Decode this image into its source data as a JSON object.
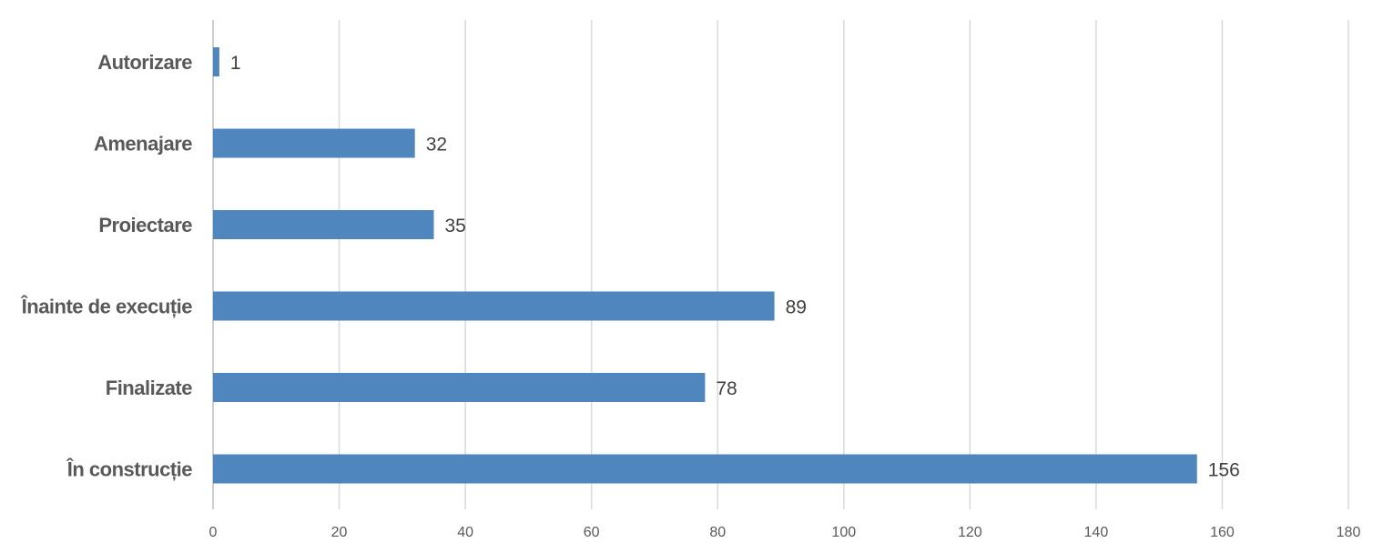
{
  "chart_data": {
    "type": "bar",
    "orientation": "horizontal",
    "categories": [
      "Autorizare",
      "Amenajare",
      "Proiectare",
      "Înainte de execuție",
      "Finalizate",
      "În construcție"
    ],
    "values": [
      1,
      32,
      35,
      89,
      78,
      156
    ],
    "title": "",
    "xlabel": "",
    "ylabel": "",
    "xlim": [
      0,
      180
    ],
    "x_ticks": [
      0,
      20,
      40,
      60,
      80,
      100,
      120,
      140,
      160,
      180
    ],
    "grid": "vertical",
    "legend": "none",
    "bar_color": "#4f86be",
    "data_labels": true
  }
}
